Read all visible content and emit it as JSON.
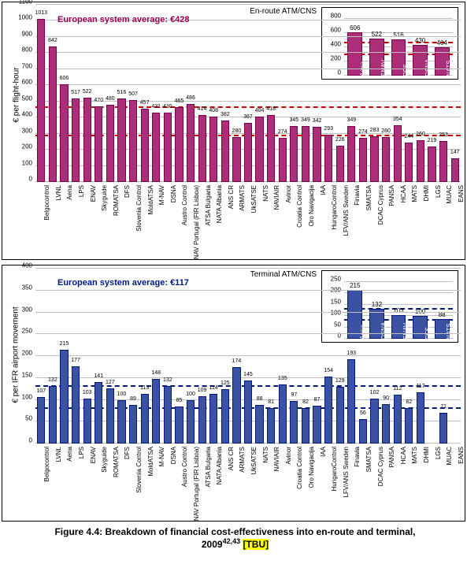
{
  "main": {
    "categories": [
      "Belgocontrol",
      "LVNL",
      "Aena",
      "LPS",
      "ENAV",
      "Skyguide",
      "ROMATSA",
      "DFS",
      "Slovenia Control",
      "MoldATSA",
      "M-NAV",
      "DSNA",
      "Austro Control",
      "NAV Portugal (FIR Lisboa)",
      "ATSA Bulgaria",
      "NATA Albania",
      "ANS CR",
      "ARMATS",
      "UkSATSE",
      "NATS",
      "NAVIAIR",
      "Avinor",
      "Croatia Control",
      "Oro Navigacija",
      "IAA",
      "HungaroControl",
      "LFV/ANS Sweden",
      "Finavia",
      "SMATSA",
      "DCAC Cyprus",
      "PANSA",
      "HCAA",
      "MATS",
      "DHMI",
      "LGS",
      "MUAC",
      "EANS"
    ],
    "panel1": {
      "corner_label": "En-route ATM/CNS",
      "y_title": "€ per flight-hour",
      "avg_label": "European system average: €428",
      "avg_color": "#990052",
      "bar_fill": "#aa2e78",
      "bar_border": "#7a004f",
      "ylim": [
        0,
        1100
      ],
      "ytick_step": 100,
      "grid_color": "#bfbfbf",
      "ref_lines": [
        285,
        460
      ],
      "ref_style": "dashed",
      "ref_color": "#cc0000",
      "values": [
        1013,
        842,
        606,
        517,
        522,
        470,
        480,
        516,
        507,
        457,
        431,
        430,
        465,
        486,
        414,
        408,
        382,
        280,
        367,
        404,
        418,
        274,
        345,
        349,
        342,
        293,
        226,
        349,
        274,
        283,
        280,
        354,
        244,
        260,
        219,
        253,
        147
      ],
      "inset": {
        "labels": [
          "Aena",
          "ENAV",
          "DFS",
          "DSNA",
          "NATS"
        ],
        "values": [
          606,
          522,
          516,
          430,
          404
        ],
        "ylim": [
          0,
          800
        ],
        "ytick_step": 200,
        "ref_lines": [
          285,
          460
        ]
      }
    },
    "panel2": {
      "corner_label": "Terminal ATM/CNS",
      "y_title": "€ per IFR airport movement",
      "avg_label": "European system average: €117",
      "avg_color": "#001a80",
      "bar_fill": "#3b52a3",
      "bar_border": "#001a80",
      "ylim": [
        0,
        400
      ],
      "ytick_step": 50,
      "grid_color": "#bfbfbf",
      "ref_lines": [
        80,
        130
      ],
      "ref_style": "dashed",
      "ref_color": "#001a80",
      "values": [
        107,
        132,
        215,
        177,
        103,
        141,
        127,
        100,
        89,
        113,
        148,
        132,
        85,
        100,
        109,
        114,
        125,
        174,
        145,
        88,
        81,
        135,
        97,
        82,
        87,
        154,
        129,
        193,
        56,
        102,
        90,
        112,
        82,
        117,
        null,
        71,
        null
      ],
      "inset": {
        "labels": [
          "Aena",
          "DSNA",
          "ENAV",
          "DFS",
          "NATS"
        ],
        "values": [
          215,
          132,
          103,
          100,
          88
        ],
        "ylim": [
          0,
          250
        ],
        "ytick_step": 50,
        "ref_lines": [
          80,
          130
        ]
      }
    }
  },
  "caption": {
    "line1_a": "Figure 4.4: Breakdown of financial cost-effectiveness into en-route and terminal,",
    "line2_a": "2009",
    "sup": "42,43",
    "tbu": "[TBU]"
  }
}
